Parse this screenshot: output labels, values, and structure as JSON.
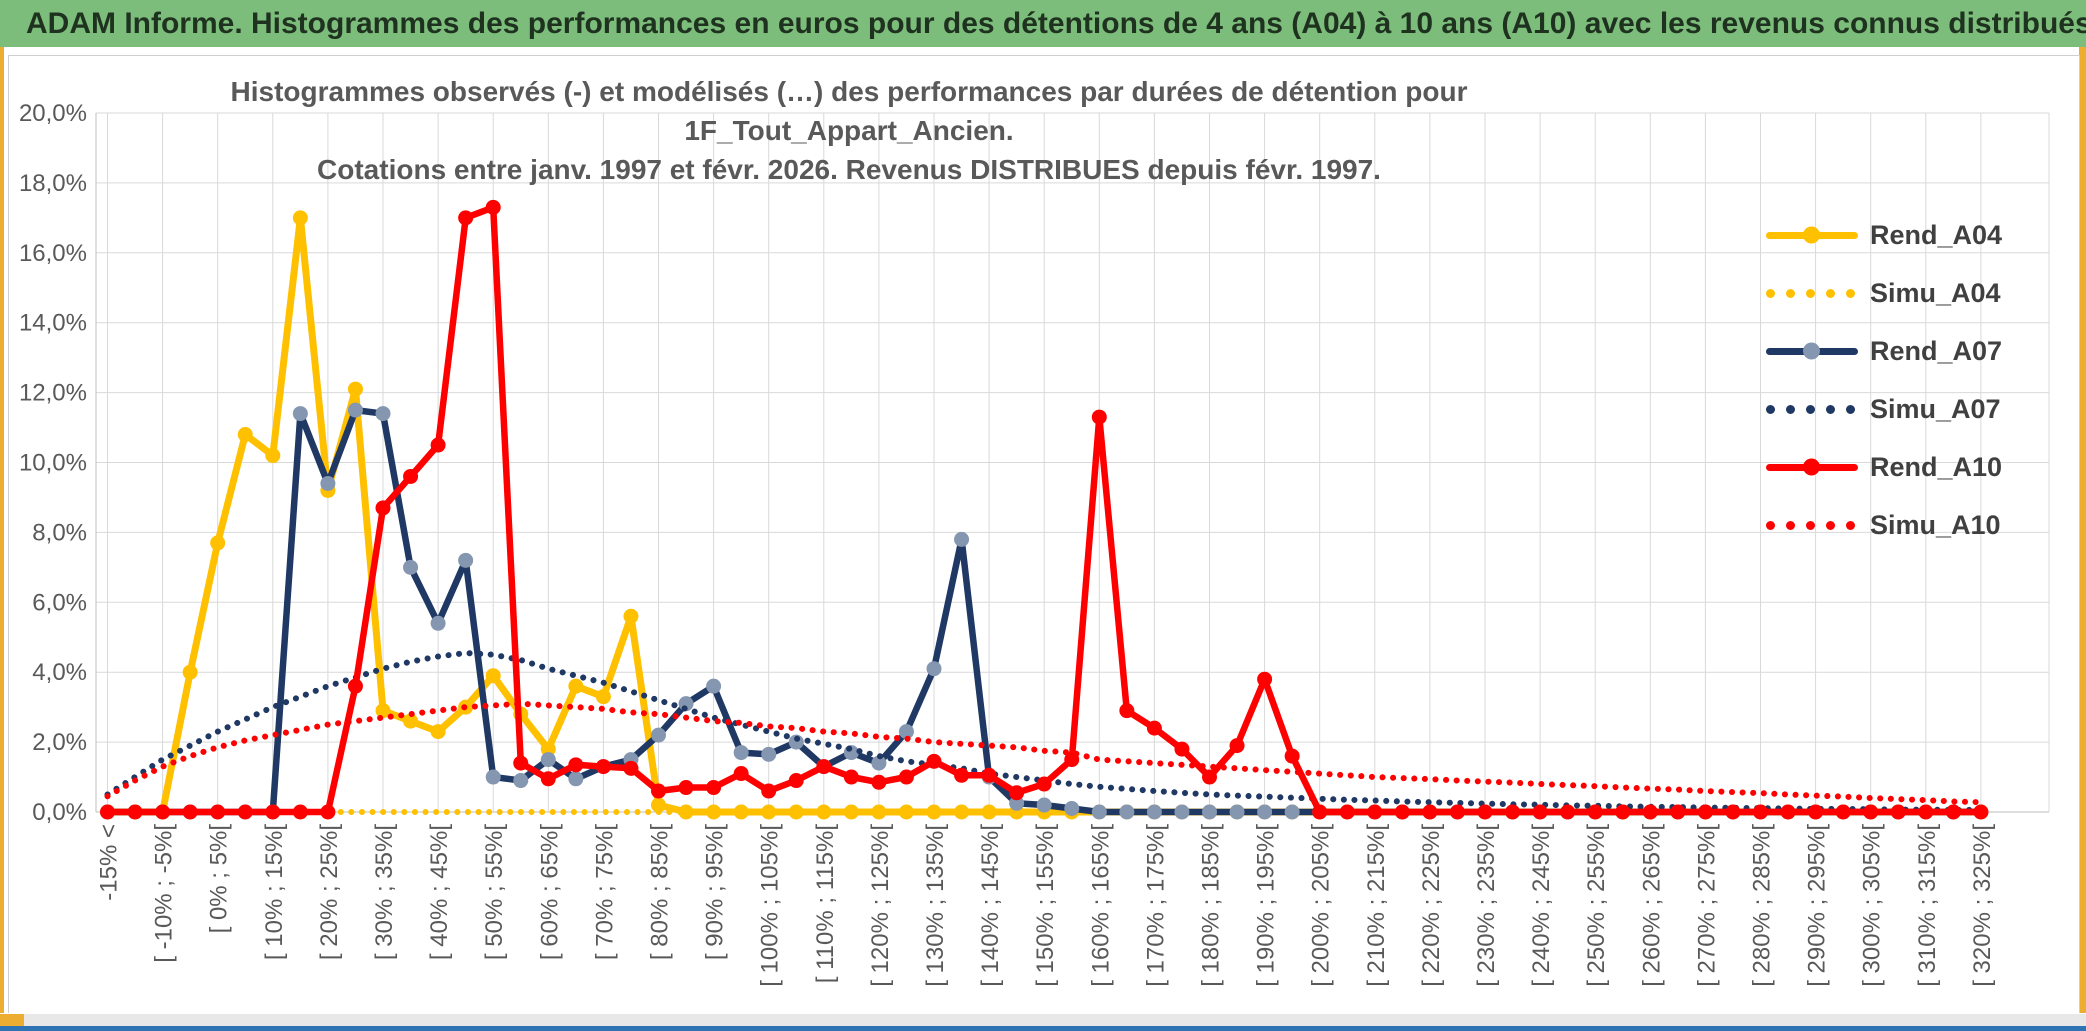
{
  "window": {
    "title": "ADAM Informe. Histogrammes des performances en euros pour des détentions de 4 ans (A04) à 10 ans (A10) avec les revenus connus distribués"
  },
  "chart": {
    "title_line1": "Histogrammes observés (-) et modélisés (…) des performances par durées de détention pour 1F_Tout_Appart_Ancien.",
    "title_line2": "Cotations entre janv. 1997 et févr. 2026. Revenus DISTRIBUES depuis févr. 1997."
  },
  "ui_colors": {
    "header_bg": "#7CBD7C",
    "header_text": "#1F321F",
    "accent_gold": "#EDAD31",
    "bottom_blue": "#2E74B5",
    "gridline": "#D9D9D9",
    "axis_text": "#595959",
    "legend_text": "#404040"
  },
  "chart_data": {
    "type": "line",
    "title": "Histogrammes observés (-) et modélisés (…) des performances par durées de détention pour 1F_Tout_Appart_Ancien.",
    "subtitle": "Cotations entre janv. 1997 et févr. 2026. Revenus DISTRIBUES depuis févr. 1997.",
    "xlabel": "",
    "ylabel": "",
    "ylim": [
      0,
      20
    ],
    "grid": true,
    "legend_position": "right",
    "y_tick_labels": [
      "0,0%",
      "2,0%",
      "4,0%",
      "6,0%",
      "8,0%",
      "10,0%",
      "12,0%",
      "14,0%",
      "16,0%",
      "18,0%",
      "20,0%"
    ],
    "n_bins": 69,
    "x_tick_every": 2,
    "x_tick_labels": [
      "-15% <",
      "[ -10% ; -5%[",
      "[ 0% ; 5%[",
      "[ 10% ; 15%[",
      "[ 20% ; 25%[",
      "[ 30% ; 35%[",
      "[ 40% ; 45%[",
      "[ 50% ; 55%[",
      "[ 60% ; 65%[",
      "[ 70% ; 75%[",
      "[ 80% ; 85%[",
      "[ 90% ; 95%[",
      "[ 100% ; 105%[",
      "[ 110% ; 115%[",
      "[ 120% ; 125%[",
      "[ 130% ; 135%[",
      "[ 140% ; 145%[",
      "[ 150% ; 155%[",
      "[ 160% ; 165%[",
      "[ 170% ; 175%[",
      "[ 180% ; 185%[",
      "[ 190% ; 195%[",
      "[ 200% ; 205%[",
      "[ 210% ; 215%[",
      "[ 220% ; 225%[",
      "[ 230% ; 235%[",
      "[ 240% ; 245%[",
      "[ 250% ; 255%[",
      "[ 260% ; 265%[",
      "[ 270% ; 275%[",
      "[ 280% ; 285%[",
      "[ 290% ; 295%[",
      "[ 300% ; 305%[",
      "[ 310% ; 315%[",
      "[ 320% ; 325%["
    ],
    "series": [
      {
        "name": "Rend_A04",
        "style": "solid",
        "marker": true,
        "color": "#FFC000",
        "marker_color": "#FFC000",
        "width": 7,
        "values": [
          0,
          0,
          0,
          4,
          7.7,
          10.8,
          10.2,
          17,
          9.2,
          12.1,
          2.9,
          2.6,
          2.3,
          3,
          3.9,
          2.8,
          1.8,
          3.6,
          3.3,
          5.6,
          0.2,
          0,
          0,
          0,
          0,
          0,
          0,
          0,
          0,
          0,
          0,
          0,
          0,
          0,
          0,
          0,
          0,
          0,
          0,
          0,
          0,
          0,
          0,
          0,
          0,
          0,
          0,
          0,
          0,
          0,
          0,
          0,
          0,
          0,
          0,
          0,
          0,
          0,
          0,
          0,
          0,
          0,
          0,
          0,
          0,
          0,
          0,
          0,
          0
        ]
      },
      {
        "name": "Simu_A04",
        "style": "dotted",
        "marker": false,
        "color": "#FFC000",
        "width": 6,
        "values": [
          0,
          0,
          0,
          0,
          0,
          0,
          0,
          0,
          0,
          0,
          0,
          0,
          0,
          0,
          0,
          0,
          0,
          0,
          0,
          0,
          0,
          0,
          0,
          0,
          0,
          0,
          0,
          0,
          0,
          0,
          0,
          0,
          0,
          0,
          0,
          0,
          0,
          0,
          0,
          0,
          0,
          0,
          0,
          0,
          0,
          0,
          0,
          0,
          0,
          0,
          0,
          0,
          0,
          0,
          0,
          0,
          0,
          0,
          0,
          0,
          0,
          0,
          0,
          0,
          0,
          0,
          0,
          0,
          0
        ]
      },
      {
        "name": "Rend_A07",
        "style": "solid",
        "marker": true,
        "color": "#1F3864",
        "marker_color": "#8496B0",
        "width": 6.5,
        "values": [
          0,
          0,
          0,
          0,
          0,
          0,
          0,
          11.4,
          9.4,
          11.5,
          11.4,
          7,
          5.4,
          7.2,
          1,
          0.9,
          1.5,
          0.95,
          1.3,
          1.5,
          2.2,
          3.1,
          3.6,
          1.7,
          1.65,
          2,
          1.3,
          1.7,
          1.4,
          2.3,
          4.1,
          7.8,
          1,
          0.25,
          0.2,
          0.1,
          0,
          0,
          0,
          0,
          0,
          0,
          0,
          0,
          0,
          0,
          0,
          0,
          0,
          0,
          0,
          0,
          0,
          0,
          0,
          0,
          0,
          0,
          0,
          0,
          0,
          0,
          0,
          0,
          0,
          0,
          0,
          0,
          0
        ]
      },
      {
        "name": "Simu_A07",
        "style": "dotted",
        "marker": false,
        "color": "#1F3864",
        "width": 6,
        "values": [
          0.5,
          1,
          1.5,
          1.9,
          2.3,
          2.65,
          3,
          3.3,
          3.6,
          3.85,
          4.1,
          4.3,
          4.45,
          4.55,
          4.5,
          4.35,
          4.1,
          3.9,
          3.7,
          3.45,
          3.2,
          2.95,
          2.7,
          2.5,
          2.3,
          2.1,
          1.95,
          1.8,
          1.6,
          1.45,
          1.35,
          1.25,
          1.1,
          1,
          0.9,
          0.8,
          0.72,
          0.66,
          0.6,
          0.55,
          0.5,
          0.47,
          0.44,
          0.41,
          0.38,
          0.35,
          0.33,
          0.3,
          0.28,
          0.26,
          0.24,
          0.22,
          0.21,
          0.19,
          0.18,
          0.16,
          0.15,
          0.14,
          0.13,
          0.12,
          0.11,
          0.1,
          0.09,
          0.09,
          0.08,
          0.07,
          0.07,
          0.06,
          0.06
        ]
      },
      {
        "name": "Rend_A10",
        "style": "solid",
        "marker": true,
        "color": "#FF0000",
        "marker_color": "#FF0000",
        "width": 6.5,
        "values": [
          0,
          0,
          0,
          0,
          0,
          0,
          0,
          0,
          0,
          3.6,
          8.7,
          9.6,
          10.5,
          17,
          17.3,
          1.4,
          0.95,
          1.35,
          1.3,
          1.25,
          0.6,
          0.7,
          0.7,
          1.1,
          0.6,
          0.9,
          1.3,
          1,
          0.85,
          1,
          1.45,
          1.05,
          1.05,
          0.55,
          0.8,
          1.5,
          11.3,
          2.9,
          2.4,
          1.8,
          1,
          1.9,
          3.8,
          1.6,
          0,
          0,
          0,
          0,
          0,
          0,
          0,
          0,
          0,
          0,
          0,
          0,
          0,
          0,
          0,
          0,
          0,
          0,
          0,
          0,
          0,
          0,
          0,
          0,
          0
        ]
      },
      {
        "name": "Simu_A10",
        "style": "dotted",
        "marker": false,
        "color": "#FF0000",
        "width": 6,
        "values": [
          0.45,
          0.9,
          1.3,
          1.6,
          1.85,
          2.05,
          2.2,
          2.35,
          2.5,
          2.6,
          2.7,
          2.8,
          2.9,
          3,
          3.05,
          3.1,
          3.05,
          3,
          2.95,
          2.85,
          2.8,
          2.7,
          2.6,
          2.55,
          2.45,
          2.4,
          2.3,
          2.25,
          2.15,
          2.1,
          2,
          1.95,
          1.9,
          1.85,
          1.75,
          1.7,
          1.5,
          1.45,
          1.4,
          1.35,
          1.3,
          1.25,
          1.2,
          1.15,
          1.1,
          1.05,
          1,
          0.97,
          0.94,
          0.9,
          0.87,
          0.84,
          0.8,
          0.77,
          0.74,
          0.7,
          0.67,
          0.64,
          0.6,
          0.57,
          0.54,
          0.5,
          0.47,
          0.44,
          0.4,
          0.37,
          0.34,
          0.3,
          0.28
        ]
      }
    ]
  }
}
